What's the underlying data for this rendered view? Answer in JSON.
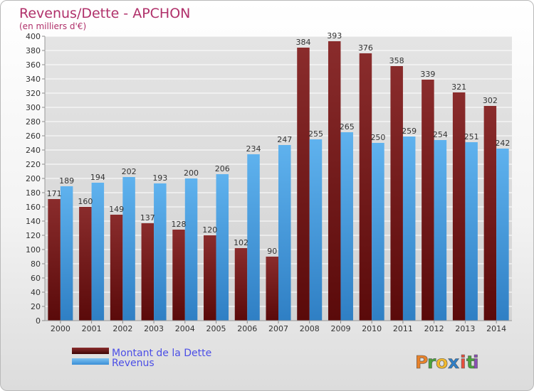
{
  "chart_data": {
    "type": "bar",
    "title": "Revenus/Dette - APCHON",
    "subtitle": "(en milliers d'€)",
    "categories": [
      "2000",
      "2001",
      "2002",
      "2003",
      "2004",
      "2005",
      "2006",
      "2007",
      "2008",
      "2009",
      "2010",
      "2011",
      "2012",
      "2013",
      "2014"
    ],
    "series": [
      {
        "name": "Montant de la Dette",
        "values": [
          171,
          160,
          149,
          137,
          128,
          120,
          102,
          90,
          384,
          393,
          376,
          358,
          339,
          321,
          302
        ],
        "color": "#7a1f1f"
      },
      {
        "name": "Revenus",
        "values": [
          189,
          194,
          202,
          193,
          200,
          206,
          234,
          247,
          255,
          265,
          250,
          259,
          254,
          251,
          242
        ],
        "color": "#4aa3e6"
      }
    ],
    "ylim": [
      0,
      400
    ],
    "ytick_step": 20,
    "grid": true,
    "legend_position": "bottom-left"
  },
  "brand": {
    "letters": [
      "P",
      "r",
      "o",
      "x",
      "i",
      "t",
      "i"
    ],
    "colors": [
      "#e8822a",
      "#49a33b",
      "#f1b82d",
      "#2f7fc7",
      "#e94e3c",
      "#49a33b",
      "#8a4fb5"
    ]
  },
  "colors": {
    "title": "#b0306a",
    "legend_text": "#4b4ee6",
    "axis_text": "#333333",
    "grid": "#ffffff"
  }
}
